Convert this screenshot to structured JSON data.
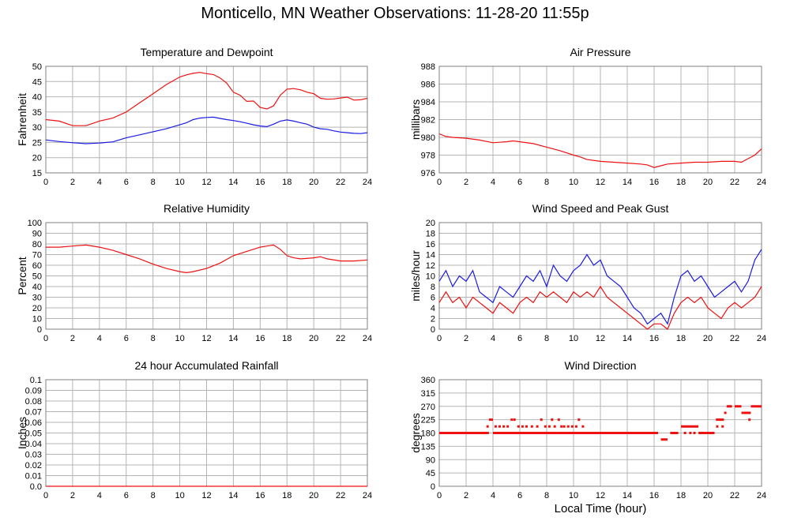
{
  "page": {
    "title": "Monticello, MN Weather Observations: 11-28-20 11:55p",
    "xlabel": "Local Time (hour)"
  },
  "colors": {
    "red": "#ee1111",
    "blue": "#1a1ae6",
    "grid": "#b4b4b4",
    "frame": "#808080"
  },
  "chart_data": [
    {
      "id": "temp",
      "type": "line",
      "title": "Temperature and Dewpoint",
      "ylabel": "Fahrenheit",
      "xlim": [
        0,
        24
      ],
      "ylim": [
        15,
        50
      ],
      "xticks": [
        0,
        2,
        4,
        6,
        8,
        10,
        12,
        14,
        16,
        18,
        20,
        22,
        24
      ],
      "yticks": [
        15,
        20,
        25,
        30,
        35,
        40,
        45,
        50
      ],
      "grid": true,
      "series": [
        {
          "color": "#ee1111",
          "x": [
            0,
            1,
            2,
            3,
            4,
            5,
            6,
            7,
            8,
            9,
            10,
            10.5,
            11,
            11.5,
            12,
            12.5,
            13,
            13.5,
            14,
            14.5,
            15,
            15.5,
            16,
            16.5,
            17,
            17.5,
            18,
            18.5,
            19,
            19.5,
            20,
            20.5,
            21,
            21.5,
            22,
            22.5,
            23,
            23.5,
            24
          ],
          "y": [
            32.5,
            32,
            30.5,
            30.5,
            32,
            33,
            35,
            38,
            41,
            44,
            46.5,
            47.2,
            47.7,
            48,
            47.6,
            47.3,
            46.2,
            44.5,
            41.5,
            40.5,
            38.5,
            38.6,
            36.5,
            36,
            37,
            40.5,
            42.5,
            42.7,
            42.3,
            41.5,
            41,
            39.5,
            39.2,
            39.3,
            39.6,
            39.9,
            38.9,
            39,
            39.5
          ]
        },
        {
          "color": "#1a1ae6",
          "x": [
            0,
            1,
            2,
            3,
            4,
            5,
            6,
            7,
            8,
            9,
            10,
            10.5,
            11,
            11.5,
            12,
            12.5,
            13,
            13.5,
            14,
            14.5,
            15,
            15.5,
            16,
            16.5,
            17,
            17.5,
            18,
            18.5,
            19,
            19.5,
            20,
            20.5,
            21,
            21.5,
            22,
            22.5,
            23,
            23.5,
            24
          ],
          "y": [
            25.8,
            25.3,
            24.9,
            24.6,
            24.8,
            25.2,
            26.5,
            27.5,
            28.5,
            29.5,
            30.8,
            31.5,
            32.5,
            33,
            33.2,
            33.3,
            32.9,
            32.5,
            32.2,
            31.8,
            31.3,
            30.8,
            30.4,
            30.2,
            31,
            32,
            32.4,
            32,
            31.5,
            31,
            30,
            29.5,
            29.3,
            28.8,
            28.4,
            28.2,
            28,
            27.9,
            28.2
          ]
        }
      ]
    },
    {
      "id": "pressure",
      "type": "line",
      "title": "Air Pressure",
      "ylabel": "millibars",
      "xlim": [
        0,
        24
      ],
      "ylim": [
        976,
        988
      ],
      "xticks": [
        0,
        2,
        4,
        6,
        8,
        10,
        12,
        14,
        16,
        18,
        20,
        22,
        24
      ],
      "yticks": [
        976,
        978,
        980,
        982,
        984,
        986,
        988
      ],
      "grid": true,
      "series": [
        {
          "color": "#ee1111",
          "x": [
            0,
            0.5,
            1,
            2,
            3,
            4,
            5,
            5.5,
            6,
            7,
            8,
            9,
            10,
            10.5,
            11,
            12,
            13,
            14,
            15,
            15.5,
            16,
            16.5,
            17,
            18,
            19,
            20,
            21,
            22,
            22.5,
            23,
            23.5,
            24
          ],
          "y": [
            980.4,
            980.1,
            980,
            979.9,
            979.7,
            979.4,
            979.5,
            979.6,
            979.5,
            979.3,
            978.9,
            978.5,
            978,
            977.8,
            977.5,
            977.3,
            977.2,
            977.1,
            977,
            976.9,
            976.6,
            976.8,
            977,
            977.1,
            977.2,
            977.2,
            977.3,
            977.3,
            977.2,
            977.6,
            978,
            978.7
          ]
        }
      ]
    },
    {
      "id": "humidity",
      "type": "line",
      "title": "Relative Humidity",
      "ylabel": "Percent",
      "xlim": [
        0,
        24
      ],
      "ylim": [
        0,
        100
      ],
      "xticks": [
        0,
        2,
        4,
        6,
        8,
        10,
        12,
        14,
        16,
        18,
        20,
        22,
        24
      ],
      "yticks": [
        0,
        10,
        20,
        30,
        40,
        50,
        60,
        70,
        80,
        90,
        100
      ],
      "grid": true,
      "series": [
        {
          "color": "#ee1111",
          "x": [
            0,
            1,
            2,
            3,
            4,
            5,
            6,
            7,
            8,
            9,
            10,
            10.5,
            11,
            12,
            13,
            14,
            15,
            16,
            16.5,
            17,
            17.5,
            18,
            18.5,
            19,
            20,
            20.5,
            21,
            22,
            23,
            24
          ],
          "y": [
            77,
            77,
            78,
            79,
            77,
            74,
            70,
            66,
            61,
            57,
            54,
            53,
            54,
            57,
            62,
            69,
            73,
            77,
            78,
            79,
            75,
            69,
            67,
            66,
            67,
            68,
            66,
            64,
            64,
            65
          ]
        }
      ]
    },
    {
      "id": "wind",
      "type": "line",
      "title": "Wind Speed and Peak Gust",
      "ylabel": "miles/hour",
      "xlim": [
        0,
        24
      ],
      "ylim": [
        0,
        20
      ],
      "xticks": [
        0,
        2,
        4,
        6,
        8,
        10,
        12,
        14,
        16,
        18,
        20,
        22,
        24
      ],
      "yticks": [
        0,
        2,
        4,
        6,
        8,
        10,
        12,
        14,
        16,
        18,
        20
      ],
      "grid": true,
      "series": [
        {
          "color": "#1a1ae6",
          "x": [
            0,
            0.5,
            1,
            1.5,
            2,
            2.5,
            3,
            3.5,
            4,
            4.5,
            5,
            5.5,
            6,
            6.5,
            7,
            7.5,
            8,
            8.5,
            9,
            9.5,
            10,
            10.5,
            11,
            11.5,
            12,
            12.5,
            13,
            13.5,
            14,
            14.5,
            15,
            15.5,
            16,
            16.5,
            17,
            17.5,
            18,
            18.5,
            19,
            19.5,
            20,
            20.5,
            21,
            21.5,
            22,
            22.5,
            23,
            23.5,
            24
          ],
          "y": [
            9,
            11,
            8,
            10,
            9,
            11,
            7,
            6,
            5,
            8,
            7,
            6,
            8,
            10,
            9,
            11,
            8,
            12,
            10,
            9,
            11,
            12,
            14,
            12,
            13,
            10,
            9,
            8,
            6,
            4,
            3,
            1,
            2,
            3,
            1,
            6,
            10,
            11,
            9,
            10,
            8,
            6,
            7,
            8,
            9,
            7,
            9,
            13,
            15
          ]
        },
        {
          "color": "#ee1111",
          "x": [
            0,
            0.5,
            1,
            1.5,
            2,
            2.5,
            3,
            3.5,
            4,
            4.5,
            5,
            5.5,
            6,
            6.5,
            7,
            7.5,
            8,
            8.5,
            9,
            9.5,
            10,
            10.5,
            11,
            11.5,
            12,
            12.5,
            13,
            13.5,
            14,
            14.5,
            15,
            15.5,
            16,
            16.5,
            17,
            17.5,
            18,
            18.5,
            19,
            19.5,
            20,
            20.5,
            21,
            21.5,
            22,
            22.5,
            23,
            23.5,
            24
          ],
          "y": [
            5,
            7,
            5,
            6,
            4,
            6,
            5,
            4,
            3,
            5,
            4,
            3,
            5,
            6,
            5,
            7,
            6,
            7,
            6,
            5,
            7,
            6,
            7,
            6,
            8,
            6,
            5,
            4,
            3,
            2,
            1,
            0,
            1,
            1,
            0,
            3,
            5,
            6,
            5,
            6,
            4,
            3,
            2,
            4,
            5,
            4,
            5,
            6,
            8
          ]
        }
      ]
    },
    {
      "id": "rain",
      "type": "line",
      "title": "24 hour Accumulated Rainfall",
      "ylabel": "Inches",
      "xlim": [
        0,
        24
      ],
      "ylim": [
        0,
        0.1
      ],
      "xticks": [
        0,
        2,
        4,
        6,
        8,
        10,
        12,
        14,
        16,
        18,
        20,
        22,
        24
      ],
      "yticks": [
        0.0,
        0.01,
        0.02,
        0.03,
        0.04,
        0.05,
        0.06,
        0.07,
        0.08,
        0.09,
        0.1
      ],
      "ytick_labels": [
        "0.0",
        "0.01",
        "0.02",
        "0.03",
        "0.04",
        "0.05",
        "0.06",
        "0.07",
        "0.08",
        "0.09",
        "0.1"
      ],
      "grid": true,
      "series": [
        {
          "color": "#ee1111",
          "x": [
            0,
            24
          ],
          "y": [
            0,
            0
          ]
        }
      ]
    },
    {
      "id": "direction",
      "type": "scatter",
      "title": "Wind Direction",
      "ylabel": "degrees",
      "xlim": [
        0,
        24
      ],
      "ylim": [
        0,
        360
      ],
      "xticks": [
        0,
        2,
        4,
        6,
        8,
        10,
        12,
        14,
        16,
        18,
        20,
        22,
        24
      ],
      "yticks": [
        0,
        45,
        90,
        135,
        180,
        225,
        270,
        315,
        360
      ],
      "grid": true,
      "series": [
        {
          "color": "#ee1111",
          "segments": [
            {
              "x0": 0,
              "x1": 3.7,
              "y": 180
            },
            {
              "x0": 3.7,
              "x1": 4.0,
              "y": 225
            },
            {
              "x0": 4.0,
              "x1": 7.5,
              "y": 180
            },
            {
              "x0": 7.5,
              "x1": 8.8,
              "y": 180
            },
            {
              "x0": 8.8,
              "x1": 16.3,
              "y": 180
            },
            {
              "x0": 16.5,
              "x1": 17.0,
              "y": 158
            },
            {
              "x0": 17.2,
              "x1": 17.8,
              "y": 180
            },
            {
              "x0": 18.0,
              "x1": 19.3,
              "y": 202
            },
            {
              "x0": 19.3,
              "x1": 20.5,
              "y": 180
            },
            {
              "x0": 20.6,
              "x1": 21.2,
              "y": 225
            },
            {
              "x0": 21.4,
              "x1": 21.8,
              "y": 270
            },
            {
              "x0": 22.0,
              "x1": 22.5,
              "y": 270
            },
            {
              "x0": 22.5,
              "x1": 23.2,
              "y": 248
            },
            {
              "x0": 23.2,
              "x1": 24,
              "y": 270
            }
          ],
          "points": [
            {
              "x": 3.6,
              "y": 202
            },
            {
              "x": 4.2,
              "y": 202
            },
            {
              "x": 4.5,
              "y": 202
            },
            {
              "x": 4.8,
              "y": 202
            },
            {
              "x": 5.1,
              "y": 202
            },
            {
              "x": 5.4,
              "y": 225
            },
            {
              "x": 5.6,
              "y": 225
            },
            {
              "x": 5.9,
              "y": 202
            },
            {
              "x": 6.2,
              "y": 202
            },
            {
              "x": 6.5,
              "y": 202
            },
            {
              "x": 6.9,
              "y": 202
            },
            {
              "x": 7.3,
              "y": 202
            },
            {
              "x": 7.6,
              "y": 225
            },
            {
              "x": 7.9,
              "y": 202
            },
            {
              "x": 8.2,
              "y": 202
            },
            {
              "x": 8.4,
              "y": 225
            },
            {
              "x": 8.6,
              "y": 202
            },
            {
              "x": 8.9,
              "y": 225
            },
            {
              "x": 9.1,
              "y": 202
            },
            {
              "x": 9.3,
              "y": 202
            },
            {
              "x": 9.6,
              "y": 202
            },
            {
              "x": 9.9,
              "y": 202
            },
            {
              "x": 10.2,
              "y": 202
            },
            {
              "x": 10.4,
              "y": 225
            },
            {
              "x": 10.7,
              "y": 202
            },
            {
              "x": 18.3,
              "y": 180
            },
            {
              "x": 18.7,
              "y": 180
            },
            {
              "x": 19.0,
              "y": 180
            },
            {
              "x": 20.7,
              "y": 202
            },
            {
              "x": 21.1,
              "y": 202
            },
            {
              "x": 21.3,
              "y": 248
            },
            {
              "x": 23.1,
              "y": 225
            }
          ]
        }
      ]
    }
  ]
}
